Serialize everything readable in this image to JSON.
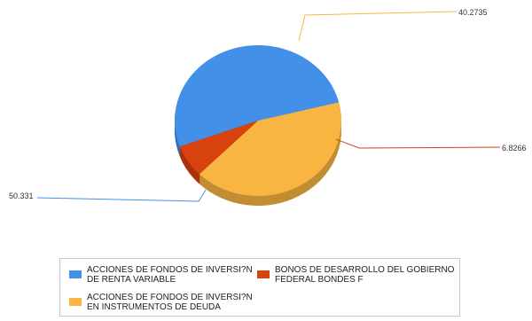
{
  "chart_data": {
    "type": "pie",
    "title": "",
    "slices": [
      {
        "label": "ACCIONES DE FONDOS DE INVERSI?N DE RENTA VARIABLE",
        "value": 50.331,
        "value_label": "50.331",
        "color": "#4390e8"
      },
      {
        "label": "ACCIONES DE FONDOS DE INVERSI?N EN INSTRUMENTOS DE DEUDA",
        "value": 40.2735,
        "value_label": "40.2735",
        "color": "#f9b541"
      },
      {
        "label": "BONOS DE DESARROLLO DEL GOBIERNO FEDERAL BONDES F",
        "value": 6.8266,
        "value_label": "6.8266",
        "color": "#d8420f"
      }
    ],
    "legend": {
      "position": "bottom",
      "columns": 2
    }
  },
  "legend_text": {
    "renta_variable": "ACCIONES DE FONDOS DE INVERSI?N\nDE RENTA VARIABLE",
    "deuda": "ACCIONES DE FONDOS DE INVERSI?N\nEN INSTRUMENTOS DE DEUDA",
    "bondes": "BONOS DE DESARROLLO DEL GOBIERNO\nFEDERAL BONDES F"
  }
}
